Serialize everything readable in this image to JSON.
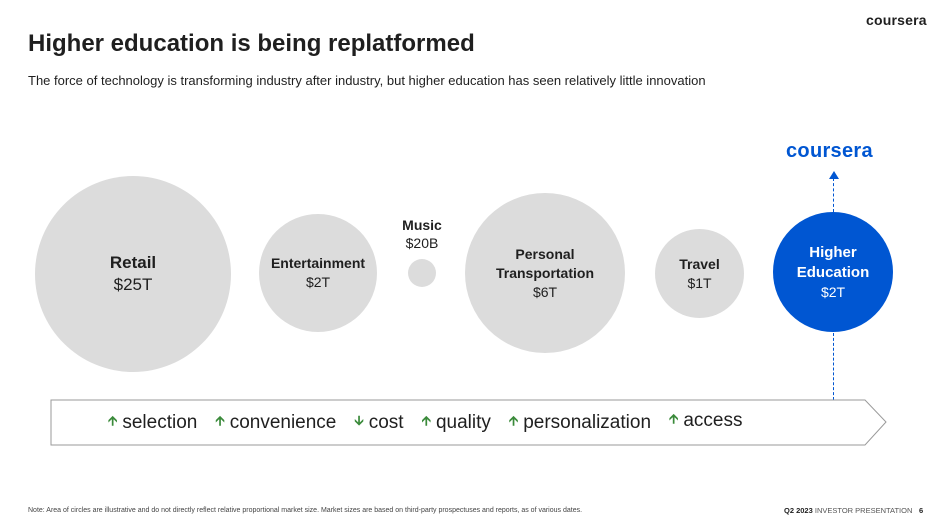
{
  "header": {
    "logo_text": "coursera",
    "title": "Higher education is being replatformed",
    "subtitle": "The force of technology is transforming industry after industry, but higher education has seen relatively little innovation"
  },
  "industries": [
    {
      "name": "Retail",
      "value": "$25T"
    },
    {
      "name": "Entertainment",
      "value": "$2T"
    },
    {
      "name": "Music",
      "value": "$20B"
    },
    {
      "name": "Personal Transportation",
      "value": "$6T"
    },
    {
      "name": "Travel",
      "value": "$1T"
    },
    {
      "name": "Higher Education",
      "value": "$2T"
    }
  ],
  "coursera_logo": "coursera",
  "benefits": [
    {
      "label": "selection",
      "direction": "up"
    },
    {
      "label": "convenience",
      "direction": "up"
    },
    {
      "label": "cost",
      "direction": "down"
    },
    {
      "label": "quality",
      "direction": "up"
    },
    {
      "label": "personalization",
      "direction": "up"
    },
    {
      "label": "access",
      "direction": "up"
    }
  ],
  "colors": {
    "accent": "#0056d2",
    "bubble": "#dcdcdc",
    "arrow": "#3a8a3a"
  },
  "footer": {
    "note": "Note: Area of circles are illustrative and do not directly reflect relative proportional market size. Market sizes are based on third-party prospectuses and reports, as of various dates.",
    "period": "Q2 2023",
    "doc_label": "INVESTOR PRESENTATION",
    "page_number": "6"
  }
}
